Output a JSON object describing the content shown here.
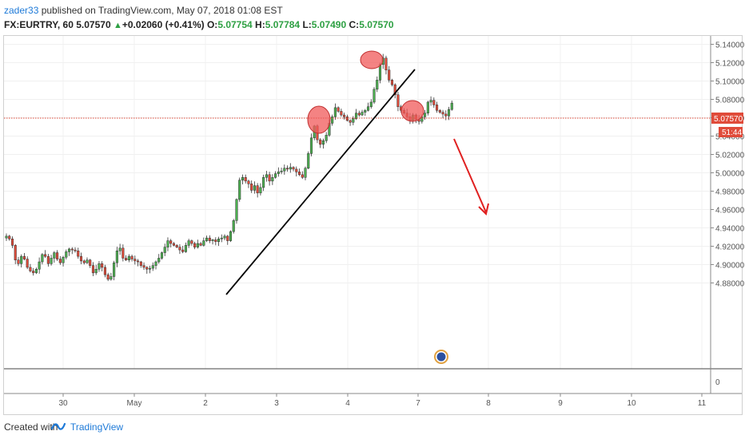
{
  "header": {
    "user": "zader33",
    "publish_text": " published on TradingView.com, May 07, 2018 01:08 EST",
    "symbol": "FX:EURTRY, 60",
    "last": "5.07570",
    "change": "+0.02060 (+0.41%)",
    "o_label": "O:",
    "o_val": "5.07754",
    "h_label": "H:",
    "h_val": "5.07784",
    "l_label": "L:",
    "l_val": "5.07490",
    "c_label": "C:",
    "c_val": "5.07570"
  },
  "footer": {
    "created_with": "Created with",
    "brand": "TradingView"
  },
  "colors": {
    "up": "#4caf50",
    "down": "#e04b3a",
    "price_line": "#e04b3a",
    "annotation_circle": "#f05a5a",
    "arrow": "#e02020",
    "trendline": "#000000"
  },
  "chart_data": {
    "type": "candlestick",
    "y_ticks": [
      "5.14000",
      "5.12000",
      "5.10000",
      "5.08000",
      "5.06000",
      "5.04000",
      "5.02000",
      "5.00000",
      "4.98000",
      "4.96000",
      "4.94000",
      "4.92000",
      "4.90000",
      "4.88000"
    ],
    "y_range": [
      4.868,
      5.148
    ],
    "x_ticks": [
      "30",
      "May",
      "2",
      "3",
      "4",
      "7",
      "8",
      "9",
      "10",
      "11"
    ],
    "last_price_label": "5.07570",
    "countdown_label": "51:44",
    "volume_axis_tick": "0",
    "close_series": [
      4.931,
      4.928,
      4.921,
      4.905,
      4.901,
      4.909,
      4.906,
      4.897,
      4.893,
      4.891,
      4.895,
      4.903,
      4.911,
      4.909,
      4.901,
      4.907,
      4.913,
      4.906,
      4.902,
      4.908,
      4.914,
      4.917,
      4.916,
      4.915,
      4.909,
      4.904,
      4.902,
      4.905,
      4.899,
      4.891,
      4.895,
      4.901,
      4.897,
      4.889,
      4.884,
      4.887,
      4.902,
      4.915,
      4.918,
      4.907,
      4.905,
      4.909,
      4.906,
      4.904,
      4.903,
      4.899,
      4.897,
      4.895,
      4.896,
      4.899,
      4.903,
      4.907,
      4.913,
      4.919,
      4.926,
      4.923,
      4.921,
      4.919,
      4.916,
      4.914,
      4.921,
      4.926,
      4.923,
      4.919,
      4.923,
      4.921,
      4.926,
      4.929,
      4.926,
      4.927,
      4.925,
      4.928,
      4.929,
      4.931,
      4.926,
      4.936,
      4.948,
      4.971,
      4.992,
      4.995,
      4.991,
      4.988,
      4.981,
      4.986,
      4.978,
      4.984,
      4.995,
      4.998,
      4.991,
      4.995,
      4.999,
      5.001,
      5.002,
      5.005,
      5.004,
      5.006,
      5.004,
      5.001,
      4.998,
      4.995,
      5.005,
      5.021,
      5.038,
      5.051,
      5.036,
      5.031,
      5.035,
      5.041,
      5.054,
      5.061,
      5.071,
      5.067,
      5.063,
      5.061,
      5.057,
      5.055,
      5.059,
      5.065,
      5.063,
      5.066,
      5.068,
      5.072,
      5.077,
      5.091,
      5.101,
      5.118,
      5.125,
      5.112,
      5.101,
      5.096,
      5.085,
      5.072,
      5.068,
      5.065,
      5.061,
      5.057,
      5.063,
      5.058,
      5.056,
      5.061,
      5.065,
      5.077,
      5.079,
      5.074,
      5.068,
      5.066,
      5.064,
      5.062,
      5.069,
      5.076
    ]
  }
}
